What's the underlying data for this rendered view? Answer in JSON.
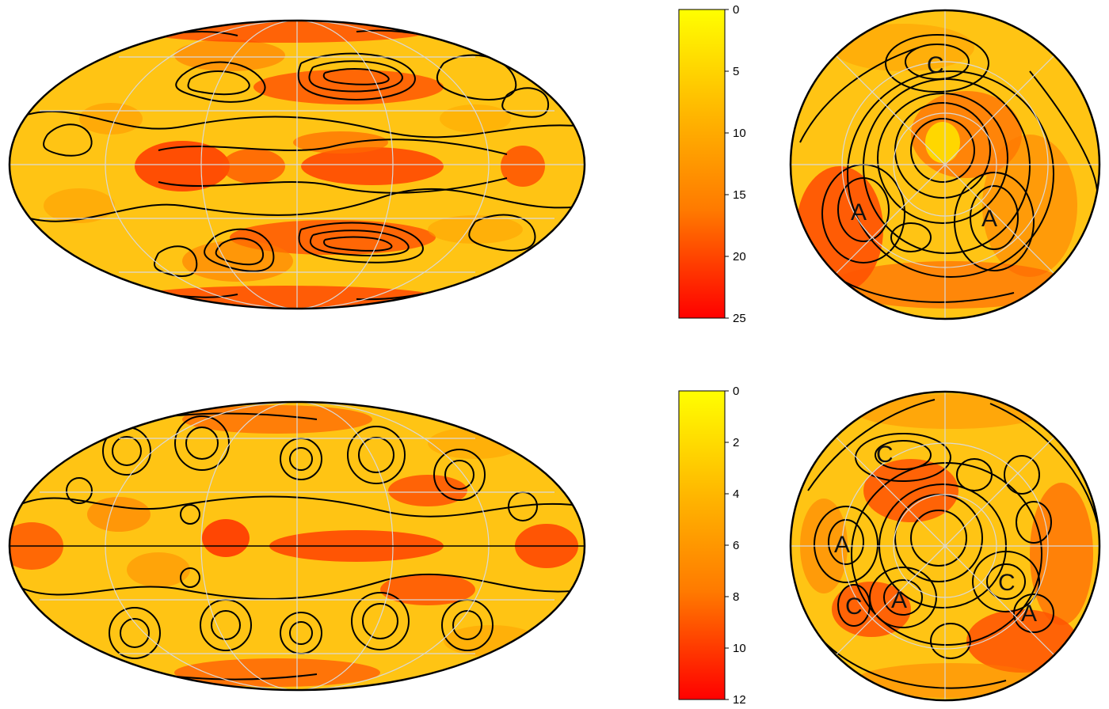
{
  "figure": {
    "panels": [
      {
        "id": "top",
        "colorbar": {
          "ticks": [
            "0",
            "5",
            "10",
            "15",
            "20",
            "25"
          ],
          "min": 0,
          "max": 25,
          "color_min": "#ffff00",
          "color_mid": "#ff9a00",
          "color_max": "#ff0000"
        },
        "polar_labels": [
          "C",
          "A",
          "A"
        ]
      },
      {
        "id": "bottom",
        "colorbar": {
          "ticks": [
            "0",
            "2",
            "4",
            "6",
            "8",
            "10",
            "12"
          ],
          "min": 0,
          "max": 12,
          "color_min": "#ffff00",
          "color_mid": "#ff9a00",
          "color_max": "#ff0000"
        },
        "polar_labels": [
          "C",
          "A",
          "C",
          "A",
          "C",
          "A"
        ]
      }
    ],
    "colors": {
      "fill_base": "#ffc414",
      "contour": "#000000",
      "graticule": "#d9d9d9"
    }
  }
}
